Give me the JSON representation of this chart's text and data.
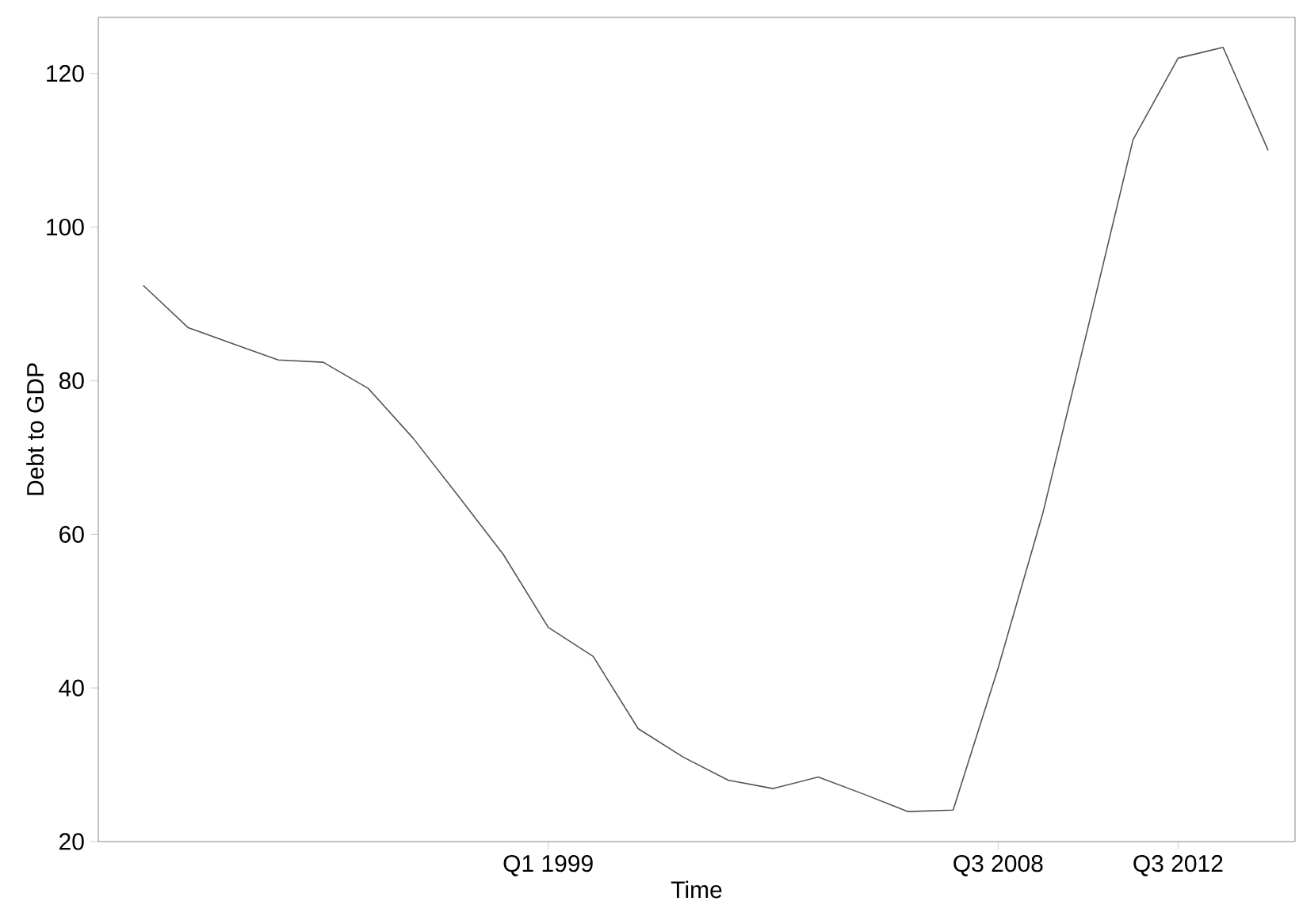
{
  "chart_data": {
    "type": "line",
    "xlabel": "Time",
    "ylabel": "Debt to GDP",
    "categories": [
      null,
      null,
      null,
      null,
      null,
      null,
      null,
      null,
      null,
      "Q1 1999",
      null,
      null,
      null,
      null,
      null,
      null,
      null,
      null,
      null,
      "Q3 2008",
      null,
      null,
      null,
      "Q3 2012",
      null,
      null
    ],
    "series": [
      {
        "color": "#555555",
        "values": [
          92.4,
          86.9,
          84.8,
          82.7,
          82.4,
          79.0,
          72.5,
          65.0,
          57.4,
          47.9,
          44.1,
          34.7,
          31.0,
          28.0,
          26.9,
          28.4,
          26.2,
          23.9,
          24.1,
          42.6,
          62.9,
          87.0,
          111.4,
          122.0,
          123.4,
          110.0
        ]
      }
    ],
    "ylim": [
      20,
      127.3
    ],
    "yticks": [
      20,
      40,
      60,
      80,
      100,
      120
    ],
    "grid": false,
    "marker": "none",
    "line_style": "solid"
  }
}
